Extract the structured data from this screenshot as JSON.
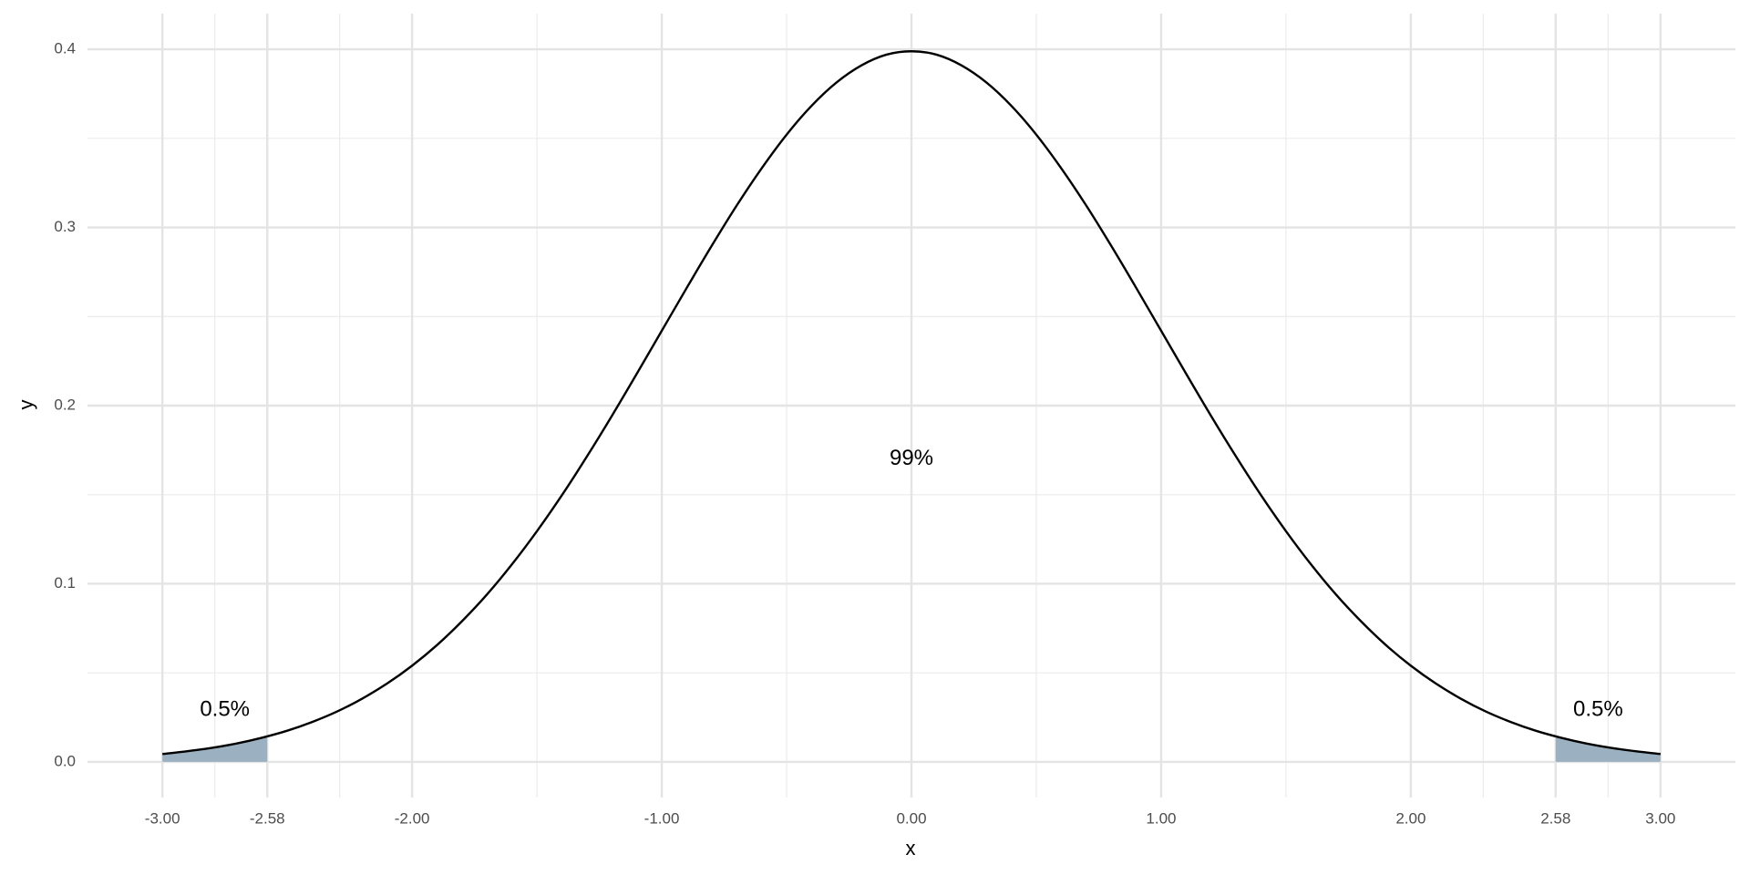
{
  "chart_data": {
    "type": "line",
    "xlabel": "x",
    "ylabel": "y",
    "x": [
      -3.0,
      -2.9,
      -2.8,
      -2.7,
      -2.6,
      -2.5,
      -2.4,
      -2.3,
      -2.2,
      -2.1,
      -2.0,
      -1.9,
      -1.8,
      -1.7,
      -1.6,
      -1.5,
      -1.4,
      -1.3,
      -1.2,
      -1.1,
      -1.0,
      -0.9,
      -0.8,
      -0.7,
      -0.6,
      -0.5,
      -0.4,
      -0.3,
      -0.2,
      -0.1,
      0.0,
      0.1,
      0.2,
      0.3,
      0.4,
      0.5,
      0.6,
      0.7,
      0.8,
      0.9,
      1.0,
      1.1,
      1.2,
      1.3,
      1.4,
      1.5,
      1.6,
      1.7,
      1.8,
      1.9,
      2.0,
      2.1,
      2.2,
      2.3,
      2.4,
      2.5,
      2.6,
      2.7,
      2.8,
      2.9,
      3.0
    ],
    "values": [
      0.0044,
      0.006,
      0.0079,
      0.0104,
      0.0136,
      0.0175,
      0.0224,
      0.0283,
      0.0355,
      0.044,
      0.054,
      0.0656,
      0.079,
      0.094,
      0.1109,
      0.1295,
      0.1497,
      0.1714,
      0.1942,
      0.2179,
      0.242,
      0.2661,
      0.2897,
      0.3123,
      0.3332,
      0.3521,
      0.3683,
      0.3814,
      0.391,
      0.397,
      0.3989,
      0.397,
      0.391,
      0.3814,
      0.3683,
      0.3521,
      0.3332,
      0.3123,
      0.2897,
      0.2661,
      0.242,
      0.2179,
      0.1942,
      0.1714,
      0.1497,
      0.1295,
      0.1109,
      0.094,
      0.079,
      0.0656,
      0.054,
      0.044,
      0.0355,
      0.0283,
      0.0224,
      0.0175,
      0.0136,
      0.0104,
      0.0079,
      0.006,
      0.0044
    ],
    "color": "#000000",
    "shaded_areas": [
      {
        "x": [
          -3.0,
          -2.9,
          -2.8,
          -2.7,
          -2.6,
          -2.58
        ],
        "values": [
          0.0044,
          0.006,
          0.0079,
          0.0104,
          0.0136,
          0.0143
        ],
        "color": "#9bb1c1"
      },
      {
        "x": [
          2.58,
          2.6,
          2.7,
          2.8,
          2.9,
          3.0
        ],
        "values": [
          0.0143,
          0.0136,
          0.0104,
          0.0079,
          0.006,
          0.0044
        ],
        "color": "#9bb1c1"
      }
    ],
    "annotations": [
      {
        "text": "99%",
        "x": 0,
        "y": 0.17
      },
      {
        "text": "0.5%",
        "x": -2.75,
        "y": 0.029
      },
      {
        "text": "0.5%",
        "x": 2.75,
        "y": 0.029
      }
    ],
    "xlim": [
      -3.3,
      3.3
    ],
    "ylim": [
      -0.02,
      0.42
    ],
    "xticks": [
      {
        "value": -3,
        "label": "-3.00"
      },
      {
        "value": -2.58,
        "label": "-2.58"
      },
      {
        "value": -2,
        "label": "-2.00"
      },
      {
        "value": -1,
        "label": "-1.00"
      },
      {
        "value": 0,
        "label": "0.00"
      },
      {
        "value": 1,
        "label": "1.00"
      },
      {
        "value": 2,
        "label": "2.00"
      },
      {
        "value": 2.58,
        "label": "2.58"
      },
      {
        "value": 3,
        "label": "3.00"
      }
    ],
    "yticks": [
      {
        "value": 0,
        "label": "0.0"
      },
      0.1,
      0.2,
      0.3,
      0.4
    ],
    "grid": true
  }
}
